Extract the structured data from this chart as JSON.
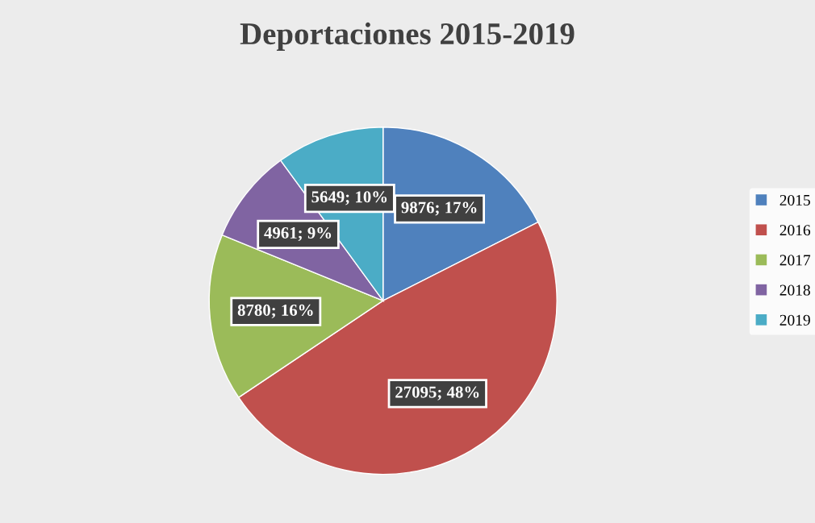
{
  "chart_data": {
    "type": "pie",
    "title": "Deportaciones 2015-2019",
    "categories": [
      "2015",
      "2016",
      "2017",
      "2018",
      "2019"
    ],
    "values": [
      9876,
      27095,
      8780,
      4961,
      5649
    ],
    "value_labels": [
      "9876; 17%",
      "27095; 48%",
      "8780; 16%",
      "4961; 9%",
      "5649; 10%"
    ],
    "colors": [
      "#4f81bd",
      "#c0504d",
      "#9bbb59",
      "#8064a2",
      "#4bacc6"
    ],
    "legend": "right"
  }
}
